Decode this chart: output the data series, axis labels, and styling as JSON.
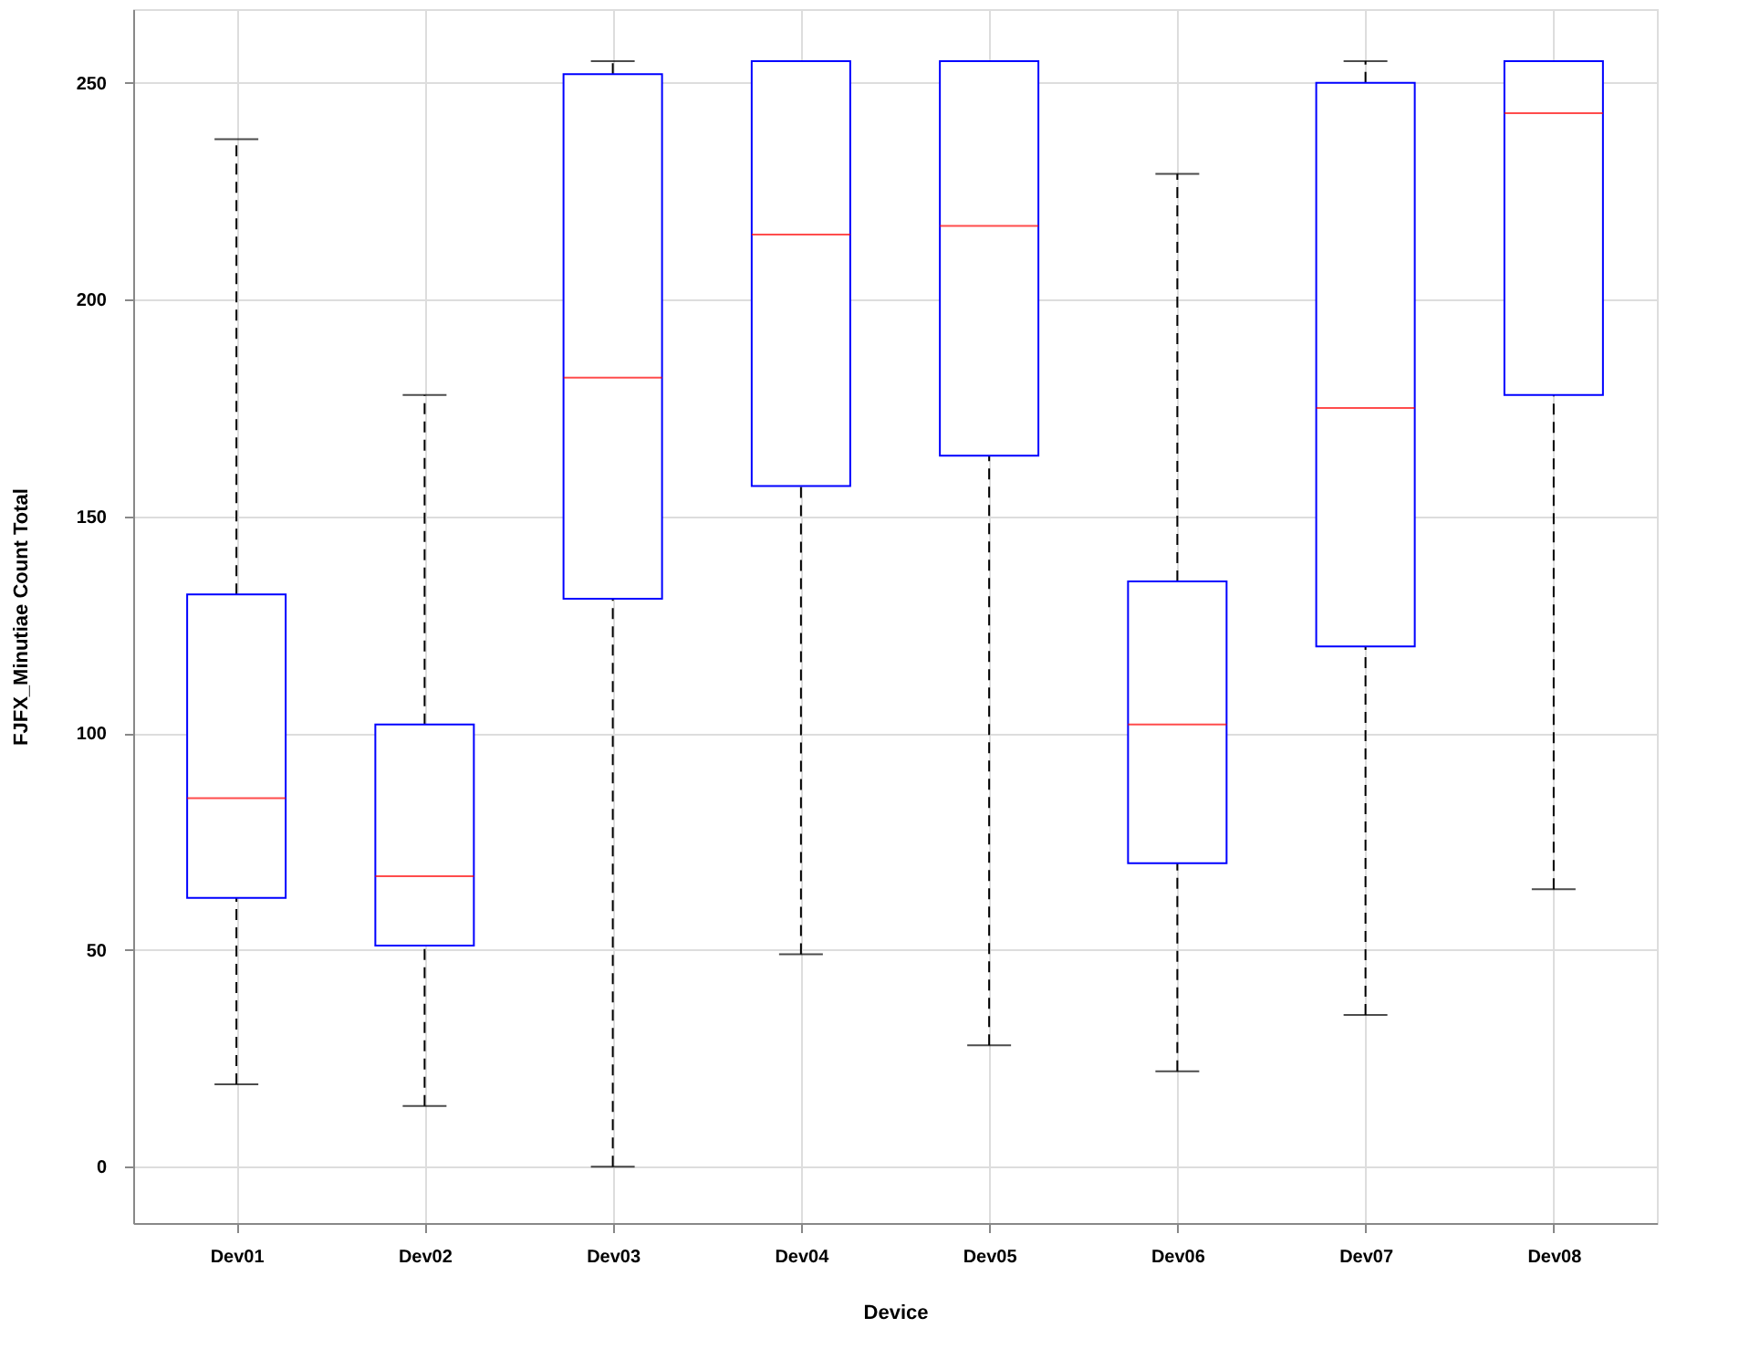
{
  "chart_data": {
    "type": "box",
    "xlabel": "Device",
    "ylabel": "FJFX_Minutiae Count Total",
    "categories": [
      "Dev01",
      "Dev02",
      "Dev03",
      "Dev04",
      "Dev05",
      "Dev06",
      "Dev07",
      "Dev08"
    ],
    "series": [
      {
        "color": "#0000ff",
        "boxes": [
          {
            "low": 19,
            "q1": 62,
            "median": 85,
            "q3": 132,
            "high": 237
          },
          {
            "low": 14,
            "q1": 51,
            "median": 67,
            "q3": 102,
            "high": 178
          },
          {
            "low": 0,
            "q1": 131,
            "median": 182,
            "q3": 252,
            "high": 255
          },
          {
            "low": 49,
            "q1": 157,
            "median": 215,
            "q3": 255,
            "high": 255
          },
          {
            "low": 28,
            "q1": 164,
            "median": 217,
            "q3": 255,
            "high": 255
          },
          {
            "low": 22,
            "q1": 70,
            "median": 102,
            "q3": 135,
            "high": 229
          },
          {
            "low": 35,
            "q1": 120,
            "median": 175,
            "q3": 250,
            "high": 255
          },
          {
            "low": 64,
            "q1": 178,
            "median": 243,
            "q3": 255,
            "high": 255
          }
        ]
      }
    ],
    "ylim": [
      -13,
      267
    ],
    "yticks": [
      0,
      50,
      100,
      150,
      200,
      250
    ],
    "grid": true
  }
}
